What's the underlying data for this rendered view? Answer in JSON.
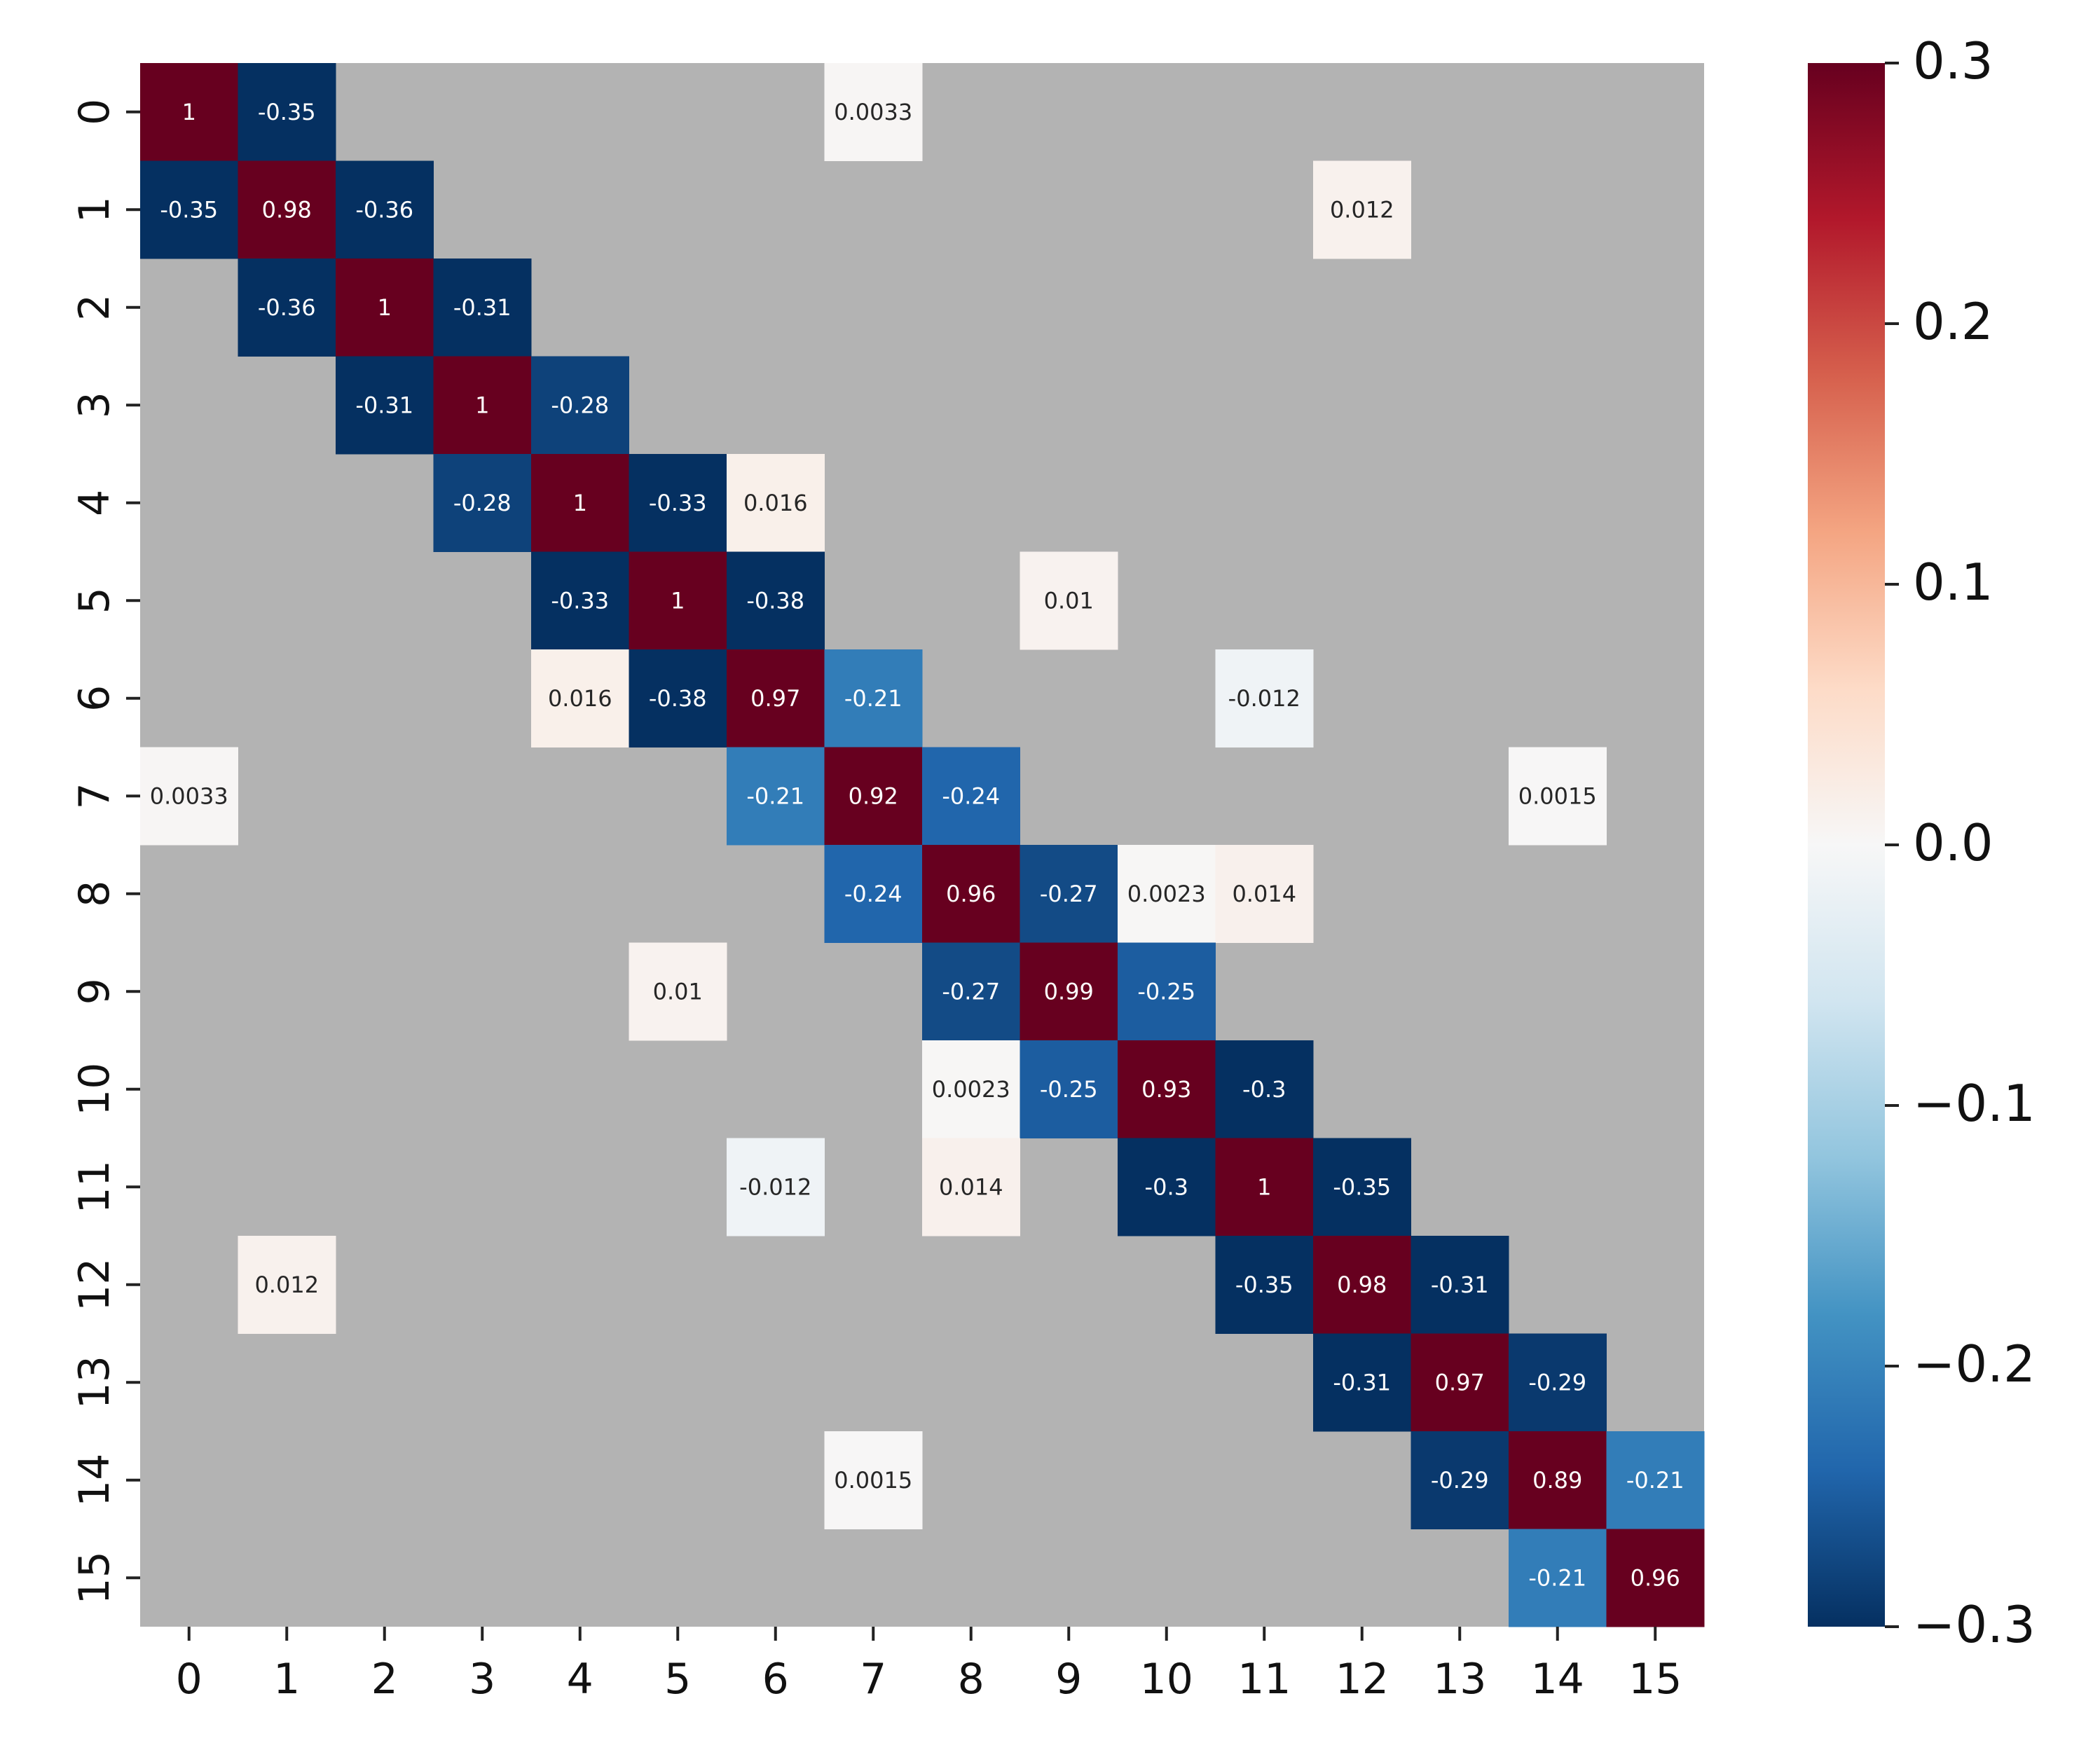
{
  "chart_data": {
    "type": "heatmap",
    "title": "",
    "xlabel": "",
    "ylabel": "",
    "x_categories": [
      "0",
      "1",
      "2",
      "3",
      "4",
      "5",
      "6",
      "7",
      "8",
      "9",
      "10",
      "11",
      "12",
      "13",
      "14",
      "15"
    ],
    "y_categories": [
      "0",
      "1",
      "2",
      "3",
      "4",
      "5",
      "6",
      "7",
      "8",
      "9",
      "10",
      "11",
      "12",
      "13",
      "14",
      "15"
    ],
    "masked_color": "#b3b3b3",
    "colormap": "RdBu_r",
    "colorbar": {
      "vmin": -0.3,
      "vmax": 0.3,
      "ticks": [
        {
          "value": 0.3,
          "label": "0.3"
        },
        {
          "value": 0.2,
          "label": "0.2"
        },
        {
          "value": 0.1,
          "label": "0.1"
        },
        {
          "value": 0.0,
          "label": "0.0"
        },
        {
          "value": -0.1,
          "label": "−0.1"
        },
        {
          "value": -0.2,
          "label": "−0.2"
        },
        {
          "value": -0.3,
          "label": "−0.3"
        }
      ]
    },
    "cells": [
      {
        "row": 0,
        "col": 0,
        "value": 1,
        "label": "1"
      },
      {
        "row": 0,
        "col": 1,
        "value": -0.35,
        "label": "-0.35"
      },
      {
        "row": 0,
        "col": 7,
        "value": 0.0033,
        "label": "0.0033"
      },
      {
        "row": 1,
        "col": 0,
        "value": -0.35,
        "label": "-0.35"
      },
      {
        "row": 1,
        "col": 1,
        "value": 0.98,
        "label": "0.98"
      },
      {
        "row": 1,
        "col": 2,
        "value": -0.36,
        "label": "-0.36"
      },
      {
        "row": 1,
        "col": 12,
        "value": 0.012,
        "label": "0.012"
      },
      {
        "row": 2,
        "col": 1,
        "value": -0.36,
        "label": "-0.36"
      },
      {
        "row": 2,
        "col": 2,
        "value": 1,
        "label": "1"
      },
      {
        "row": 2,
        "col": 3,
        "value": -0.31,
        "label": "-0.31"
      },
      {
        "row": 3,
        "col": 2,
        "value": -0.31,
        "label": "-0.31"
      },
      {
        "row": 3,
        "col": 3,
        "value": 1,
        "label": "1"
      },
      {
        "row": 3,
        "col": 4,
        "value": -0.28,
        "label": "-0.28"
      },
      {
        "row": 4,
        "col": 3,
        "value": -0.28,
        "label": "-0.28"
      },
      {
        "row": 4,
        "col": 4,
        "value": 1,
        "label": "1"
      },
      {
        "row": 4,
        "col": 5,
        "value": -0.33,
        "label": "-0.33"
      },
      {
        "row": 4,
        "col": 6,
        "value": 0.016,
        "label": "0.016"
      },
      {
        "row": 5,
        "col": 4,
        "value": -0.33,
        "label": "-0.33"
      },
      {
        "row": 5,
        "col": 5,
        "value": 1,
        "label": "1"
      },
      {
        "row": 5,
        "col": 6,
        "value": -0.38,
        "label": "-0.38"
      },
      {
        "row": 5,
        "col": 9,
        "value": 0.01,
        "label": "0.01"
      },
      {
        "row": 6,
        "col": 4,
        "value": 0.016,
        "label": "0.016"
      },
      {
        "row": 6,
        "col": 5,
        "value": -0.38,
        "label": "-0.38"
      },
      {
        "row": 6,
        "col": 6,
        "value": 0.97,
        "label": "0.97"
      },
      {
        "row": 6,
        "col": 7,
        "value": -0.21,
        "label": "-0.21"
      },
      {
        "row": 6,
        "col": 11,
        "value": -0.012,
        "label": "-0.012"
      },
      {
        "row": 7,
        "col": 0,
        "value": 0.0033,
        "label": "0.0033"
      },
      {
        "row": 7,
        "col": 6,
        "value": -0.21,
        "label": "-0.21"
      },
      {
        "row": 7,
        "col": 7,
        "value": 0.92,
        "label": "0.92"
      },
      {
        "row": 7,
        "col": 8,
        "value": -0.24,
        "label": "-0.24"
      },
      {
        "row": 7,
        "col": 14,
        "value": 0.0015,
        "label": "0.0015"
      },
      {
        "row": 8,
        "col": 7,
        "value": -0.24,
        "label": "-0.24"
      },
      {
        "row": 8,
        "col": 8,
        "value": 0.96,
        "label": "0.96"
      },
      {
        "row": 8,
        "col": 9,
        "value": -0.27,
        "label": "-0.27"
      },
      {
        "row": 8,
        "col": 10,
        "value": 0.0023,
        "label": "0.0023"
      },
      {
        "row": 8,
        "col": 11,
        "value": 0.014,
        "label": "0.014"
      },
      {
        "row": 9,
        "col": 5,
        "value": 0.01,
        "label": "0.01"
      },
      {
        "row": 9,
        "col": 8,
        "value": -0.27,
        "label": "-0.27"
      },
      {
        "row": 9,
        "col": 9,
        "value": 0.99,
        "label": "0.99"
      },
      {
        "row": 9,
        "col": 10,
        "value": -0.25,
        "label": "-0.25"
      },
      {
        "row": 10,
        "col": 8,
        "value": 0.0023,
        "label": "0.0023"
      },
      {
        "row": 10,
        "col": 9,
        "value": -0.25,
        "label": "-0.25"
      },
      {
        "row": 10,
        "col": 10,
        "value": 0.93,
        "label": "0.93"
      },
      {
        "row": 10,
        "col": 11,
        "value": -0.3,
        "label": "-0.3"
      },
      {
        "row": 11,
        "col": 6,
        "value": -0.012,
        "label": "-0.012"
      },
      {
        "row": 11,
        "col": 8,
        "value": 0.014,
        "label": "0.014"
      },
      {
        "row": 11,
        "col": 10,
        "value": -0.3,
        "label": "-0.3"
      },
      {
        "row": 11,
        "col": 11,
        "value": 1,
        "label": "1"
      },
      {
        "row": 11,
        "col": 12,
        "value": -0.35,
        "label": "-0.35"
      },
      {
        "row": 12,
        "col": 1,
        "value": 0.012,
        "label": "0.012"
      },
      {
        "row": 12,
        "col": 11,
        "value": -0.35,
        "label": "-0.35"
      },
      {
        "row": 12,
        "col": 12,
        "value": 0.98,
        "label": "0.98"
      },
      {
        "row": 12,
        "col": 13,
        "value": -0.31,
        "label": "-0.31"
      },
      {
        "row": 13,
        "col": 12,
        "value": -0.31,
        "label": "-0.31"
      },
      {
        "row": 13,
        "col": 13,
        "value": 0.97,
        "label": "0.97"
      },
      {
        "row": 13,
        "col": 14,
        "value": -0.29,
        "label": "-0.29"
      },
      {
        "row": 14,
        "col": 7,
        "value": 0.0015,
        "label": "0.0015"
      },
      {
        "row": 14,
        "col": 13,
        "value": -0.29,
        "label": "-0.29"
      },
      {
        "row": 14,
        "col": 14,
        "value": 0.89,
        "label": "0.89"
      },
      {
        "row": 14,
        "col": 15,
        "value": -0.21,
        "label": "-0.21"
      },
      {
        "row": 15,
        "col": 14,
        "value": -0.21,
        "label": "-0.21"
      },
      {
        "row": 15,
        "col": 15,
        "value": 0.96,
        "label": "0.96"
      }
    ]
  }
}
